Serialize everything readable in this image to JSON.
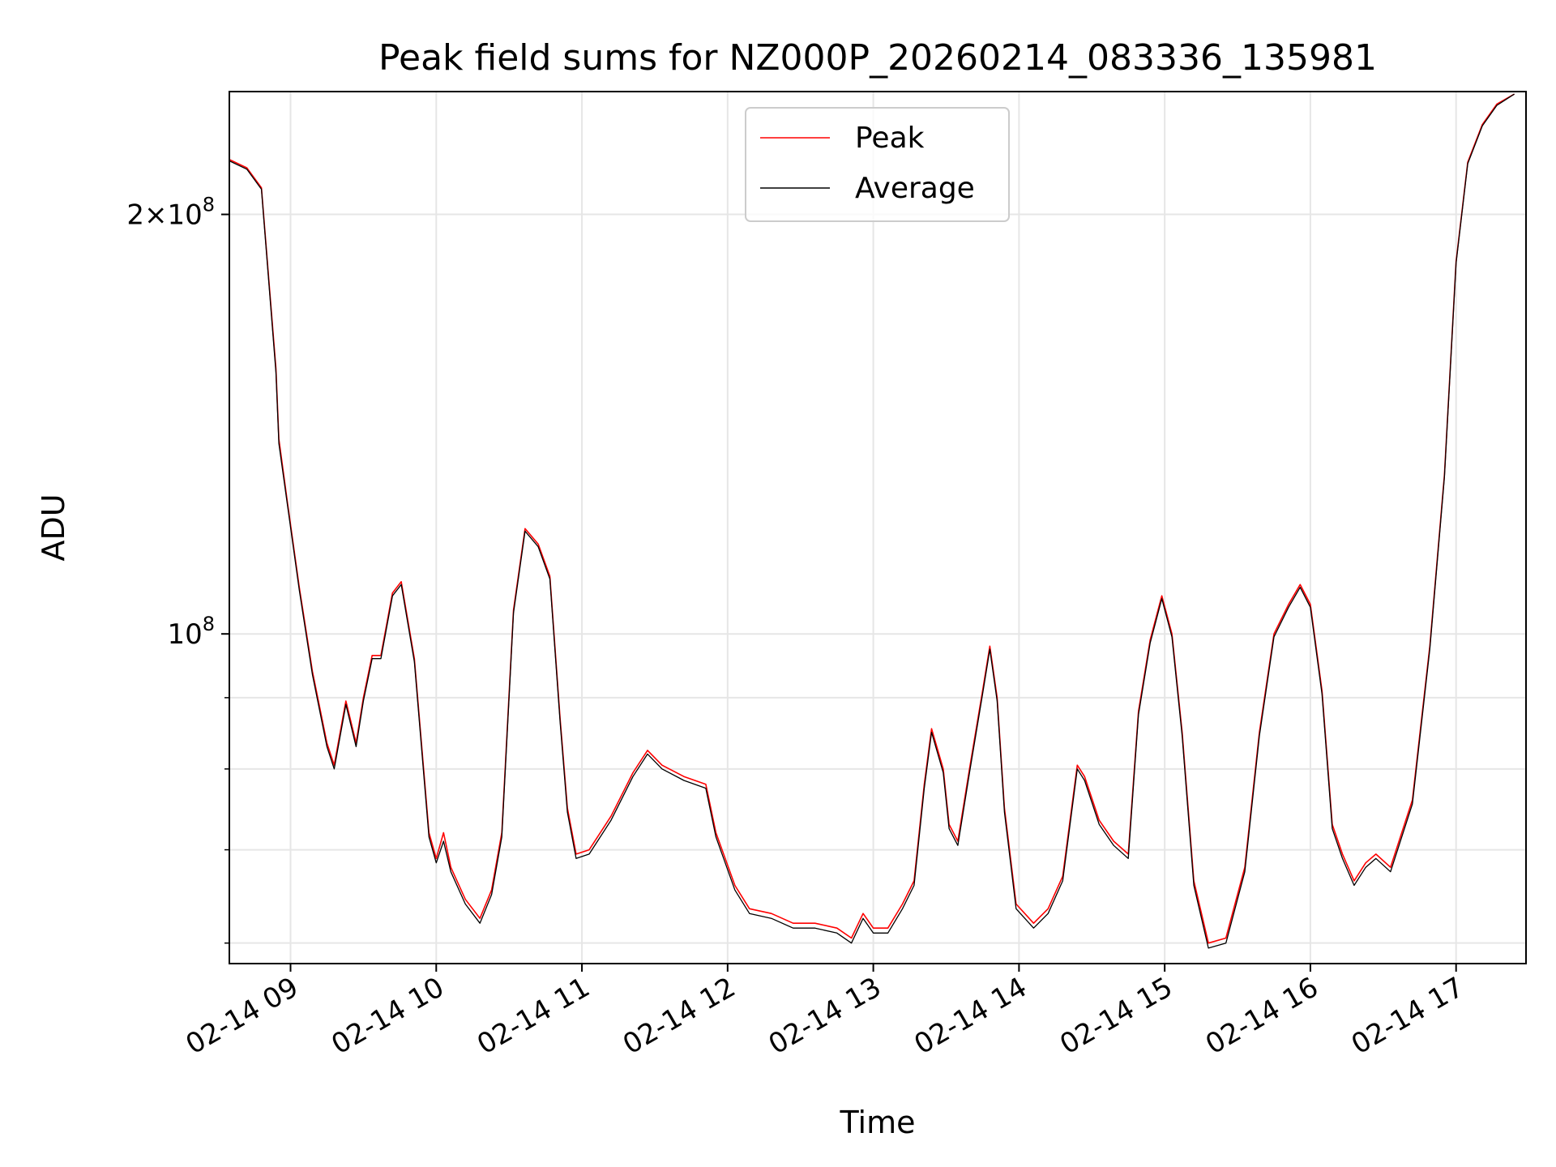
{
  "chart_data": {
    "type": "line",
    "title": "Peak field sums for NZ000P_20260214_083336_135981",
    "xlabel": "Time",
    "ylabel": "ADU",
    "yscale": "log",
    "grid": true,
    "legend_position": "top-center",
    "xlim": [
      8.58,
      17.48
    ],
    "ylim": [
      58000000,
      245000000
    ],
    "x_ticks": [
      {
        "value": 9,
        "label": "02-14 09"
      },
      {
        "value": 10,
        "label": "02-14 10"
      },
      {
        "value": 11,
        "label": "02-14 11"
      },
      {
        "value": 12,
        "label": "02-14 12"
      },
      {
        "value": 13,
        "label": "02-14 13"
      },
      {
        "value": 14,
        "label": "02-14 14"
      },
      {
        "value": 15,
        "label": "02-14 15"
      },
      {
        "value": 16,
        "label": "02-14 16"
      },
      {
        "value": 17,
        "label": "02-14 17"
      }
    ],
    "y_major_ticks": [
      {
        "value": 100000000,
        "base": "10",
        "exp": "8",
        "coef": ""
      },
      {
        "value": 200000000,
        "base": "10",
        "exp": "8",
        "coef": "2"
      }
    ],
    "y_minor_ticks": [
      60000000,
      70000000,
      80000000,
      90000000
    ],
    "series": [
      {
        "name": "Peak",
        "color": "#ff0000",
        "points": [
          [
            8.58,
            219000000
          ],
          [
            8.7,
            216000000
          ],
          [
            8.8,
            209000000
          ],
          [
            8.9,
            155000000
          ],
          [
            8.92,
            138000000
          ],
          [
            8.98,
            124000000
          ],
          [
            9.06,
            108000000
          ],
          [
            9.15,
            94000000
          ],
          [
            9.25,
            83500000
          ],
          [
            9.3,
            80500000
          ],
          [
            9.38,
            89500000
          ],
          [
            9.45,
            83500000
          ],
          [
            9.5,
            90000000
          ],
          [
            9.56,
            96500000
          ],
          [
            9.62,
            96500000
          ],
          [
            9.7,
            107000000
          ],
          [
            9.76,
            109000000
          ],
          [
            9.85,
            96000000
          ],
          [
            9.95,
            72000000
          ],
          [
            10.0,
            69000000
          ],
          [
            10.05,
            72000000
          ],
          [
            10.1,
            68000000
          ],
          [
            10.2,
            64500000
          ],
          [
            10.3,
            62500000
          ],
          [
            10.38,
            65500000
          ],
          [
            10.45,
            72000000
          ],
          [
            10.53,
            104000000
          ],
          [
            10.61,
            119000000
          ],
          [
            10.7,
            116000000
          ],
          [
            10.78,
            110000000
          ],
          [
            10.85,
            87000000
          ],
          [
            10.9,
            75000000
          ],
          [
            10.96,
            69500000
          ],
          [
            11.05,
            70000000
          ],
          [
            11.2,
            74000000
          ],
          [
            11.35,
            79500000
          ],
          [
            11.45,
            82500000
          ],
          [
            11.55,
            80500000
          ],
          [
            11.7,
            79000000
          ],
          [
            11.85,
            78000000
          ],
          [
            11.92,
            72000000
          ],
          [
            12.05,
            66000000
          ],
          [
            12.15,
            63500000
          ],
          [
            12.3,
            63000000
          ],
          [
            12.45,
            62000000
          ],
          [
            12.6,
            62000000
          ],
          [
            12.75,
            61500000
          ],
          [
            12.85,
            60500000
          ],
          [
            12.93,
            63000000
          ],
          [
            13.0,
            61500000
          ],
          [
            13.1,
            61500000
          ],
          [
            13.2,
            64000000
          ],
          [
            13.28,
            66500000
          ],
          [
            13.35,
            78000000
          ],
          [
            13.4,
            85500000
          ],
          [
            13.48,
            80000000
          ],
          [
            13.52,
            73000000
          ],
          [
            13.58,
            71000000
          ],
          [
            13.66,
            80000000
          ],
          [
            13.75,
            91000000
          ],
          [
            13.8,
            98000000
          ],
          [
            13.85,
            90000000
          ],
          [
            13.9,
            75000000
          ],
          [
            13.98,
            64000000
          ],
          [
            14.1,
            62000000
          ],
          [
            14.2,
            63500000
          ],
          [
            14.3,
            67000000
          ],
          [
            14.4,
            80500000
          ],
          [
            14.45,
            79000000
          ],
          [
            14.55,
            73500000
          ],
          [
            14.65,
            71000000
          ],
          [
            14.75,
            69500000
          ],
          [
            14.82,
            88000000
          ],
          [
            14.9,
            99000000
          ],
          [
            14.98,
            106500000
          ],
          [
            15.05,
            100000000
          ],
          [
            15.12,
            85000000
          ],
          [
            15.2,
            66500000
          ],
          [
            15.3,
            60000000
          ],
          [
            15.42,
            60500000
          ],
          [
            15.55,
            68000000
          ],
          [
            15.65,
            85000000
          ],
          [
            15.75,
            100000000
          ],
          [
            15.85,
            105000000
          ],
          [
            15.93,
            108500000
          ],
          [
            16.0,
            105000000
          ],
          [
            16.08,
            91000000
          ],
          [
            16.15,
            73000000
          ],
          [
            16.22,
            69500000
          ],
          [
            16.3,
            66500000
          ],
          [
            16.38,
            68500000
          ],
          [
            16.45,
            69500000
          ],
          [
            16.55,
            68000000
          ],
          [
            16.7,
            76000000
          ],
          [
            16.82,
            98000000
          ],
          [
            16.92,
            130000000
          ],
          [
            17.0,
            185000000
          ],
          [
            17.08,
            218000000
          ],
          [
            17.18,
            232000000
          ],
          [
            17.28,
            240000000
          ],
          [
            17.4,
            244000000
          ]
        ]
      },
      {
        "name": "Average",
        "color": "#000000",
        "points": [
          [
            8.58,
            218500000
          ],
          [
            8.7,
            215500000
          ],
          [
            8.8,
            208500000
          ],
          [
            8.9,
            154000000
          ],
          [
            8.92,
            137000000
          ],
          [
            8.98,
            123500000
          ],
          [
            9.06,
            107500000
          ],
          [
            9.15,
            93500000
          ],
          [
            9.25,
            83000000
          ],
          [
            9.3,
            80000000
          ],
          [
            9.38,
            89000000
          ],
          [
            9.45,
            83000000
          ],
          [
            9.5,
            89500000
          ],
          [
            9.56,
            96000000
          ],
          [
            9.62,
            96000000
          ],
          [
            9.7,
            106500000
          ],
          [
            9.76,
            108500000
          ],
          [
            9.85,
            95500000
          ],
          [
            9.95,
            71500000
          ],
          [
            10.0,
            68500000
          ],
          [
            10.05,
            71000000
          ],
          [
            10.1,
            67500000
          ],
          [
            10.2,
            64000000
          ],
          [
            10.3,
            62000000
          ],
          [
            10.38,
            65000000
          ],
          [
            10.45,
            71500000
          ],
          [
            10.53,
            103500000
          ],
          [
            10.61,
            118500000
          ],
          [
            10.7,
            115500000
          ],
          [
            10.78,
            109500000
          ],
          [
            10.85,
            86500000
          ],
          [
            10.9,
            74500000
          ],
          [
            10.96,
            69000000
          ],
          [
            11.05,
            69500000
          ],
          [
            11.2,
            73500000
          ],
          [
            11.35,
            79000000
          ],
          [
            11.45,
            82000000
          ],
          [
            11.55,
            80000000
          ],
          [
            11.7,
            78500000
          ],
          [
            11.85,
            77500000
          ],
          [
            11.92,
            71500000
          ],
          [
            12.05,
            65500000
          ],
          [
            12.15,
            63000000
          ],
          [
            12.3,
            62500000
          ],
          [
            12.45,
            61500000
          ],
          [
            12.6,
            61500000
          ],
          [
            12.75,
            61000000
          ],
          [
            12.85,
            60000000
          ],
          [
            12.93,
            62500000
          ],
          [
            13.0,
            61000000
          ],
          [
            13.1,
            61000000
          ],
          [
            13.2,
            63500000
          ],
          [
            13.28,
            66000000
          ],
          [
            13.35,
            77500000
          ],
          [
            13.4,
            85000000
          ],
          [
            13.48,
            79500000
          ],
          [
            13.52,
            72500000
          ],
          [
            13.58,
            70500000
          ],
          [
            13.66,
            79500000
          ],
          [
            13.75,
            90500000
          ],
          [
            13.8,
            97500000
          ],
          [
            13.85,
            89500000
          ],
          [
            13.9,
            74500000
          ],
          [
            13.98,
            63500000
          ],
          [
            14.1,
            61500000
          ],
          [
            14.2,
            63000000
          ],
          [
            14.3,
            66500000
          ],
          [
            14.4,
            80000000
          ],
          [
            14.45,
            78500000
          ],
          [
            14.55,
            73000000
          ],
          [
            14.65,
            70500000
          ],
          [
            14.75,
            69000000
          ],
          [
            14.82,
            87500000
          ],
          [
            14.9,
            98500000
          ],
          [
            14.98,
            106000000
          ],
          [
            15.05,
            99500000
          ],
          [
            15.12,
            84500000
          ],
          [
            15.2,
            66000000
          ],
          [
            15.3,
            59500000
          ],
          [
            15.42,
            60000000
          ],
          [
            15.55,
            67500000
          ],
          [
            15.65,
            84500000
          ],
          [
            15.75,
            99500000
          ],
          [
            15.85,
            104500000
          ],
          [
            15.93,
            108000000
          ],
          [
            16.0,
            104500000
          ],
          [
            16.08,
            90500000
          ],
          [
            16.15,
            72500000
          ],
          [
            16.22,
            69000000
          ],
          [
            16.3,
            66000000
          ],
          [
            16.38,
            68000000
          ],
          [
            16.45,
            69000000
          ],
          [
            16.55,
            67500000
          ],
          [
            16.7,
            75500000
          ],
          [
            16.82,
            97500000
          ],
          [
            16.92,
            129500000
          ],
          [
            17.0,
            184500000
          ],
          [
            17.08,
            217500000
          ],
          [
            17.18,
            231500000
          ],
          [
            17.28,
            239500000
          ],
          [
            17.4,
            244000000
          ]
        ]
      }
    ]
  }
}
